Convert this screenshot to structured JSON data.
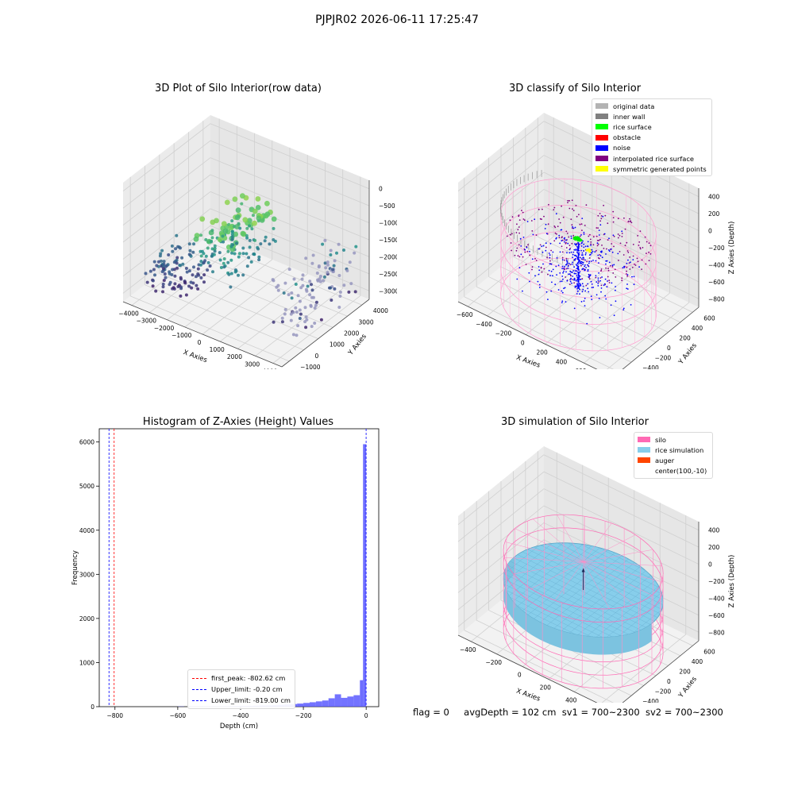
{
  "suptitle": "PJPJR02 2026-06-11 17:25:47",
  "footer": {
    "flag": "flag = 0",
    "avg_depth": "avgDepth = 102 cm",
    "sv1": "sv1 = 700~2300",
    "sv2": "sv2 = 700~2300"
  },
  "chart_data": [
    {
      "type": "scatter",
      "title": "3D Plot of Silo Interior(row data)",
      "xlabel": "X Axies",
      "ylabel": "Y Axies",
      "zlabel": "Z Axies (Depth)",
      "x_ticks": [
        "−4000",
        "−3000",
        "−2000",
        "−1000",
        "0",
        "1000",
        "2000",
        "3000",
        "4000"
      ],
      "y_ticks": [
        "−1000",
        "0",
        "1000",
        "2000",
        "3000",
        "4000"
      ],
      "z_ticks": [
        "0",
        "−500",
        "−1000",
        "−1500",
        "−2000",
        "−2500",
        "−3000"
      ],
      "xlim": [
        -4000,
        4000
      ],
      "ylim": [
        -1000,
        4000
      ],
      "zlim": [
        -3300,
        0
      ],
      "colormap": "viridis",
      "points_note_values": "clusters",
      "clusters": [
        {
          "x_range": [
            -3500,
            -1500
          ],
          "y_range": [
            -500,
            1500
          ],
          "z_range": [
            -3000,
            -2200
          ]
        },
        {
          "x_range": [
            -1500,
            500
          ],
          "y_range": [
            0,
            3000
          ],
          "z_range": [
            -2300,
            -1000
          ]
        },
        {
          "x_range": [
            2500,
            4000
          ],
          "y_range": [
            0,
            3500
          ],
          "z_range": [
            -3000,
            -1600
          ]
        }
      ]
    },
    {
      "type": "scatter",
      "title": "3D classify of Silo Interior",
      "xlabel": "X Axies",
      "ylabel": "Y Axies",
      "zlabel": "Z Axies (Depth)",
      "x_ticks": [
        "−600",
        "−400",
        "−200",
        "0",
        "200",
        "400",
        "600",
        "800"
      ],
      "y_ticks": [
        "−600",
        "−400",
        "−200",
        "0",
        "200",
        "400",
        "600"
      ],
      "z_ticks": [
        "400",
        "200",
        "0",
        "−200",
        "−400",
        "−600",
        "−800"
      ],
      "xlim": [
        -650,
        800
      ],
      "ylim": [
        -650,
        650
      ],
      "zlim": [
        -900,
        450
      ],
      "legend": [
        {
          "label": "original data",
          "color": "#b3b3b3"
        },
        {
          "label": "inner wall",
          "color": "#808080"
        },
        {
          "label": "rice surface",
          "color": "#00ff00"
        },
        {
          "label": "obstacle",
          "color": "#ff0000"
        },
        {
          "label": "noise",
          "color": "#0000ff"
        },
        {
          "label": "interpolated rice surface",
          "color": "#800080"
        },
        {
          "label": "symmetric generated points",
          "color": "#ffff00"
        }
      ],
      "silo_radius": 620,
      "silo_top": 0,
      "silo_bottom": -900
    },
    {
      "type": "bar",
      "title": "Histogram of Z-Axies (Height) Values",
      "xlabel": "Depth (cm)",
      "ylabel": "Frequency",
      "x_ticks": [
        "−800",
        "−600",
        "−400",
        "−200",
        "0"
      ],
      "y_ticks": [
        "0",
        "1000",
        "2000",
        "3000",
        "4000",
        "5000",
        "6000"
      ],
      "xlim": [
        -850,
        40
      ],
      "ylim": [
        0,
        6300
      ],
      "bar_color": "#0000ff",
      "bins": [
        {
          "x0": -600,
          "x1": -580,
          "v": 5
        },
        {
          "x0": -560,
          "x1": -540,
          "v": 8
        },
        {
          "x0": -540,
          "x1": -520,
          "v": 4
        },
        {
          "x0": -520,
          "x1": -500,
          "v": 10
        },
        {
          "x0": -500,
          "x1": -480,
          "v": 8
        },
        {
          "x0": -480,
          "x1": -460,
          "v": 6
        },
        {
          "x0": -460,
          "x1": -440,
          "v": 10
        },
        {
          "x0": -440,
          "x1": -420,
          "v": 12
        },
        {
          "x0": -420,
          "x1": -400,
          "v": 14
        },
        {
          "x0": -400,
          "x1": -380,
          "v": 16
        },
        {
          "x0": -380,
          "x1": -360,
          "v": 18
        },
        {
          "x0": -360,
          "x1": -340,
          "v": 22
        },
        {
          "x0": -340,
          "x1": -320,
          "v": 25
        },
        {
          "x0": -320,
          "x1": -300,
          "v": 28
        },
        {
          "x0": -300,
          "x1": -280,
          "v": 32
        },
        {
          "x0": -280,
          "x1": -260,
          "v": 40
        },
        {
          "x0": -260,
          "x1": -240,
          "v": 50
        },
        {
          "x0": -240,
          "x1": -220,
          "v": 60
        },
        {
          "x0": -220,
          "x1": -200,
          "v": 70
        },
        {
          "x0": -200,
          "x1": -180,
          "v": 85
        },
        {
          "x0": -180,
          "x1": -160,
          "v": 100
        },
        {
          "x0": -160,
          "x1": -140,
          "v": 120
        },
        {
          "x0": -140,
          "x1": -120,
          "v": 140
        },
        {
          "x0": -120,
          "x1": -100,
          "v": 190
        },
        {
          "x0": -100,
          "x1": -80,
          "v": 280
        },
        {
          "x0": -80,
          "x1": -60,
          "v": 200
        },
        {
          "x0": -60,
          "x1": -40,
          "v": 230
        },
        {
          "x0": -40,
          "x1": -20,
          "v": 260
        },
        {
          "x0": -20,
          "x1": -10,
          "v": 600
        },
        {
          "x0": -10,
          "x1": 0,
          "v": 5950
        }
      ],
      "vlines": [
        {
          "x": -802.62,
          "label": "first_peak: -802.62 cm",
          "color": "#ff0000"
        },
        {
          "x": -0.2,
          "label": "Upper_limit: -0.20 cm",
          "color": "#0000ff"
        },
        {
          "x": -819.0,
          "label": "Lower_limit: -819.00 cm",
          "color": "#0000ff"
        }
      ]
    },
    {
      "type": "area",
      "title": "3D simulation of Silo Interior",
      "xlabel": "X Axies",
      "ylabel": "Y Axies",
      "zlabel": "Z Axies (Depth)",
      "x_ticks": [
        "−400",
        "−200",
        "0",
        "200",
        "400",
        "600"
      ],
      "y_ticks": [
        "−600",
        "−400",
        "−200",
        "0",
        "200",
        "400",
        "600"
      ],
      "z_ticks": [
        "400",
        "200",
        "0",
        "−200",
        "−400",
        "−600",
        "−800"
      ],
      "xlim": [
        -650,
        750
      ],
      "ylim": [
        -650,
        650
      ],
      "zlim": [
        -900,
        450
      ],
      "legend": [
        {
          "label": "silo",
          "color": "#ff69b4"
        },
        {
          "label": "rice simulation",
          "color": "#87ceeb"
        },
        {
          "label": "auger",
          "color": "#ff4500"
        },
        {
          "label": "center(100,-10)",
          "color": "none"
        }
      ],
      "silo_radius": 620,
      "rice_surface_z": -320,
      "center": [
        100,
        -10
      ]
    }
  ]
}
